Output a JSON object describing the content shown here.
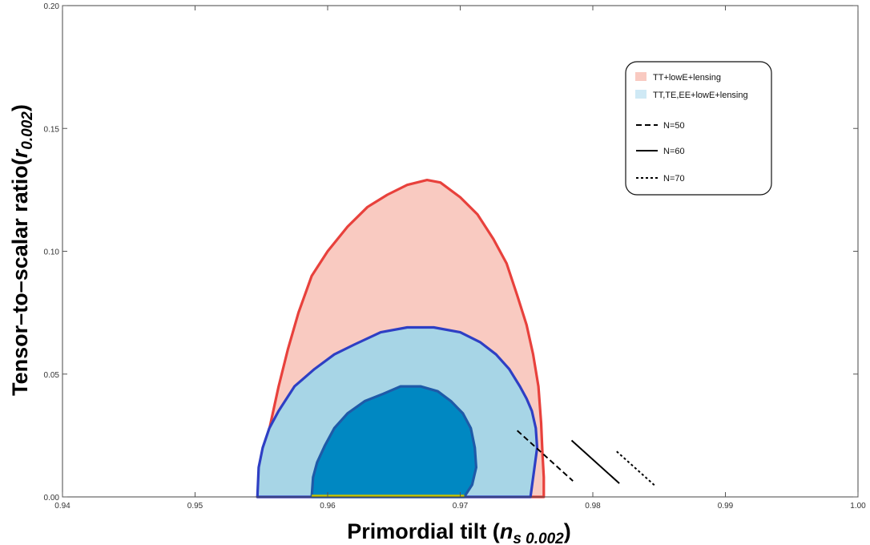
{
  "chart_data": {
    "type": "area",
    "title": "",
    "xlabel": {
      "main": "Primordial tilt (",
      "var": "n",
      "sub": "s 0.002",
      "close": ")"
    },
    "ylabel": {
      "main": "Tensor–to–scalar ratio(",
      "var": "r",
      "sub": "0.002",
      "close": ")"
    },
    "xlim": [
      0.94,
      1.0
    ],
    "ylim": [
      0.0,
      0.2
    ],
    "x_ticks": [
      {
        "value": 0.94,
        "label": "0.94"
      },
      {
        "value": 0.95,
        "label": "0.95"
      },
      {
        "value": 0.96,
        "label": "0.96"
      },
      {
        "value": 0.97,
        "label": "0.97"
      },
      {
        "value": 0.98,
        "label": "0.98"
      },
      {
        "value": 0.99,
        "label": "0.99"
      },
      {
        "value": 1.0,
        "label": "1.00"
      }
    ],
    "y_ticks": [
      {
        "value": 0.0,
        "label": "0.00"
      },
      {
        "value": 0.05,
        "label": "0.05"
      },
      {
        "value": 0.1,
        "label": "0.10"
      },
      {
        "value": 0.15,
        "label": "0.15"
      },
      {
        "value": 0.2,
        "label": "0.20"
      }
    ],
    "grid": false,
    "legend_position": "top-right",
    "contours": [
      {
        "name": "TT+lowE+lensing",
        "fill": "#f9cac1",
        "stroke": "#e8413c",
        "x": [
          0.9547,
          0.9552,
          0.9557,
          0.9563,
          0.957,
          0.9578,
          0.9588,
          0.96,
          0.9615,
          0.963,
          0.9645,
          0.966,
          0.9675,
          0.9685,
          0.97,
          0.9713,
          0.9725,
          0.9735,
          0.9743,
          0.975,
          0.9755,
          0.9759,
          0.9761,
          0.9762,
          0.9763,
          0.9763
        ],
        "y": [
          0.0,
          0.018,
          0.03,
          0.045,
          0.06,
          0.075,
          0.09,
          0.1,
          0.11,
          0.118,
          0.123,
          0.127,
          0.129,
          0.128,
          0.122,
          0.115,
          0.105,
          0.095,
          0.082,
          0.07,
          0.058,
          0.045,
          0.03,
          0.018,
          0.008,
          0.0
        ]
      },
      {
        "name": "TT,TE,EE+lowE+lensing",
        "fill": "#a7d5e6",
        "stroke": "#2e3fc4",
        "x": [
          0.9547,
          0.9548,
          0.9551,
          0.9556,
          0.9563,
          0.9575,
          0.959,
          0.9605,
          0.962,
          0.964,
          0.966,
          0.968,
          0.97,
          0.9715,
          0.9727,
          0.9737,
          0.9745,
          0.975,
          0.9754,
          0.9757,
          0.9758,
          0.9756,
          0.9753
        ],
        "y": [
          0.0,
          0.012,
          0.02,
          0.028,
          0.035,
          0.045,
          0.052,
          0.058,
          0.062,
          0.067,
          0.069,
          0.069,
          0.067,
          0.063,
          0.058,
          0.052,
          0.045,
          0.04,
          0.035,
          0.028,
          0.02,
          0.012,
          0.0
        ]
      },
      {
        "name": "TT,TE,EE+lowE+lensing (inner)",
        "fill": "#0088c2",
        "stroke": "#1f5aa8",
        "x": [
          0.9588,
          0.9589,
          0.9592,
          0.9598,
          0.9605,
          0.9615,
          0.9628,
          0.9642,
          0.9655,
          0.967,
          0.9683,
          0.9693,
          0.9702,
          0.9708,
          0.9711,
          0.9712,
          0.9709,
          0.9703
        ],
        "y": [
          0.0,
          0.008,
          0.014,
          0.021,
          0.028,
          0.034,
          0.039,
          0.042,
          0.045,
          0.045,
          0.043,
          0.039,
          0.034,
          0.028,
          0.02,
          0.012,
          0.005,
          0.0
        ]
      }
    ],
    "lines": [
      {
        "name": "N=50",
        "style": "dashed",
        "x": [
          0.9743,
          0.9785
        ],
        "y": [
          0.027,
          0.0065
        ]
      },
      {
        "name": "N=60",
        "style": "solid",
        "x": [
          0.9784,
          0.982
        ],
        "y": [
          0.023,
          0.0055
        ]
      },
      {
        "name": "N=70",
        "style": "dotted",
        "x": [
          0.9818,
          0.9847
        ],
        "y": [
          0.0185,
          0.0045
        ]
      }
    ],
    "legend": [
      {
        "label": "TT+lowE+lensing",
        "kind": "patch",
        "fill": "#f9cac1"
      },
      {
        "label": "TT,TE,EE+lowE+lensing",
        "kind": "patch",
        "fill": "#cfe9f5"
      },
      {
        "label": "N=50",
        "kind": "line",
        "style": "dashed"
      },
      {
        "label": "N=60",
        "kind": "line",
        "style": "solid"
      },
      {
        "label": "N=70",
        "kind": "line",
        "style": "dotted"
      }
    ]
  }
}
